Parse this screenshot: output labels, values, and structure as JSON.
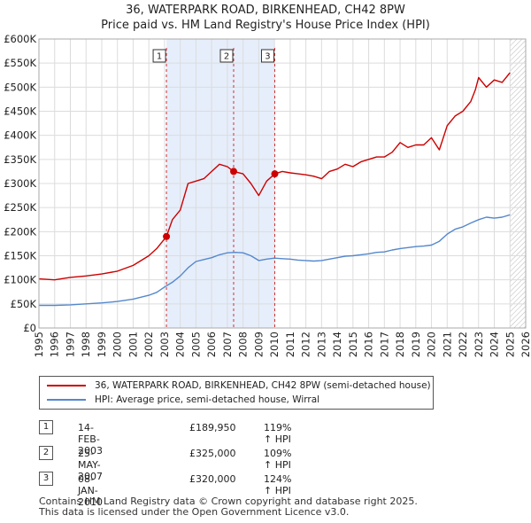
{
  "header": {
    "title": "36, WATERPARK ROAD, BIRKENHEAD, CH42 8PW",
    "subtitle": "Price paid vs. HM Land Registry's House Price Index (HPI)"
  },
  "colors": {
    "property": "#cc0000",
    "hpi": "#5588cc",
    "shade": "#e6eefb",
    "marker_line": "#d03030"
  },
  "chart_data": {
    "type": "line",
    "title": "36, WATERPARK ROAD, BIRKENHEAD, CH42 8PW",
    "subtitle": "Price paid vs. HM Land Registry's House Price Index (HPI)",
    "xlim": [
      1995,
      2026
    ],
    "ylim": [
      0,
      600000
    ],
    "yticks": [
      0,
      50000,
      100000,
      150000,
      200000,
      250000,
      300000,
      350000,
      400000,
      450000,
      500000,
      550000,
      600000
    ],
    "ytick_labels": [
      "£0",
      "£50K",
      "£100K",
      "£150K",
      "£200K",
      "£250K",
      "£300K",
      "£350K",
      "£400K",
      "£450K",
      "£500K",
      "£550K",
      "£600K"
    ],
    "xticks": [
      1995,
      1996,
      1997,
      1998,
      1999,
      2000,
      2001,
      2002,
      2003,
      2004,
      2005,
      2006,
      2007,
      2008,
      2009,
      2010,
      2011,
      2012,
      2013,
      2014,
      2015,
      2016,
      2017,
      2018,
      2019,
      2020,
      2021,
      2022,
      2023,
      2024,
      2025,
      2026
    ],
    "grid": true,
    "shaded_region": [
      2003.12,
      2010.02
    ],
    "hatched_after": 2025.0,
    "series": [
      {
        "name": "36, WATERPARK ROAD, BIRKENHEAD, CH42 8PW (semi-detached house)",
        "color": "#cc0000",
        "x": [
          1995.0,
          1996.0,
          1997.0,
          1998.0,
          1999.0,
          2000.0,
          2001.0,
          2002.0,
          2002.5,
          2003.12,
          2003.5,
          2004.0,
          2004.5,
          2005.0,
          2005.5,
          2006.0,
          2006.5,
          2007.0,
          2007.4,
          2008.0,
          2008.5,
          2009.0,
          2009.5,
          2010.02,
          2010.5,
          2011.0,
          2011.5,
          2012.0,
          2012.5,
          2013.0,
          2013.5,
          2014.0,
          2014.5,
          2015.0,
          2015.5,
          2016.0,
          2016.5,
          2017.0,
          2017.5,
          2018.0,
          2018.5,
          2019.0,
          2019.5,
          2020.0,
          2020.5,
          2020.7,
          2021.0,
          2021.5,
          2022.0,
          2022.5,
          2022.8,
          2023.0,
          2023.5,
          2024.0,
          2024.5,
          2025.0
        ],
        "values": [
          102000,
          100000,
          105000,
          108000,
          112000,
          118000,
          130000,
          150000,
          165000,
          189950,
          225000,
          245000,
          300000,
          305000,
          310000,
          325000,
          340000,
          335000,
          325000,
          320000,
          300000,
          275000,
          305000,
          320000,
          325000,
          322000,
          320000,
          318000,
          315000,
          310000,
          325000,
          330000,
          340000,
          335000,
          345000,
          350000,
          355000,
          355000,
          365000,
          385000,
          375000,
          380000,
          380000,
          395000,
          370000,
          390000,
          420000,
          440000,
          450000,
          470000,
          495000,
          520000,
          500000,
          515000,
          510000,
          530000
        ]
      },
      {
        "name": "HPI: Average price, semi-detached house, Wirral",
        "color": "#5588cc",
        "x": [
          1995.0,
          1996.0,
          1997.0,
          1998.0,
          1999.0,
          2000.0,
          2001.0,
          2002.0,
          2002.5,
          2003.0,
          2003.5,
          2004.0,
          2004.5,
          2005.0,
          2005.5,
          2006.0,
          2006.5,
          2007.0,
          2007.5,
          2008.0,
          2008.5,
          2009.0,
          2009.5,
          2010.0,
          2010.5,
          2011.0,
          2011.5,
          2012.0,
          2012.5,
          2013.0,
          2013.5,
          2014.0,
          2014.5,
          2015.0,
          2015.5,
          2016.0,
          2016.5,
          2017.0,
          2017.5,
          2018.0,
          2018.5,
          2019.0,
          2019.5,
          2020.0,
          2020.5,
          2021.0,
          2021.5,
          2022.0,
          2022.5,
          2023.0,
          2023.5,
          2024.0,
          2024.5,
          2025.0
        ],
        "values": [
          47000,
          47000,
          48000,
          50000,
          52000,
          55000,
          60000,
          68000,
          74000,
          85000,
          95000,
          108000,
          125000,
          138000,
          142000,
          146000,
          152000,
          156000,
          157000,
          156000,
          150000,
          140000,
          143000,
          145000,
          144000,
          143000,
          141000,
          140000,
          139000,
          140000,
          143000,
          146000,
          149000,
          150000,
          152000,
          154000,
          157000,
          158000,
          162000,
          165000,
          167000,
          169000,
          170000,
          172000,
          180000,
          195000,
          205000,
          210000,
          218000,
          225000,
          230000,
          228000,
          230000,
          235000
        ]
      }
    ],
    "annotations": [
      {
        "label": "1",
        "x": 2003.12,
        "y": 189950
      },
      {
        "label": "2",
        "x": 2007.4,
        "y": 325000
      },
      {
        "label": "3",
        "x": 2010.02,
        "y": 320000
      }
    ]
  },
  "legend": [
    {
      "label": "36, WATERPARK ROAD, BIRKENHEAD, CH42 8PW (semi-detached house)",
      "color": "#cc0000"
    },
    {
      "label": "HPI: Average price, semi-detached house, Wirral",
      "color": "#5588cc"
    }
  ],
  "sales": [
    {
      "marker": "1",
      "date": "14-FEB-2003",
      "price": "£189,950",
      "hpi": "119% ↑ HPI"
    },
    {
      "marker": "2",
      "date": "25-MAY-2007",
      "price": "£325,000",
      "hpi": "109% ↑ HPI"
    },
    {
      "marker": "3",
      "date": "08-JAN-2010",
      "price": "£320,000",
      "hpi": "124% ↑ HPI"
    }
  ],
  "footer": {
    "line1": "Contains HM Land Registry data © Crown copyright and database right 2025.",
    "line2": "This data is licensed under the Open Government Licence v3.0."
  }
}
